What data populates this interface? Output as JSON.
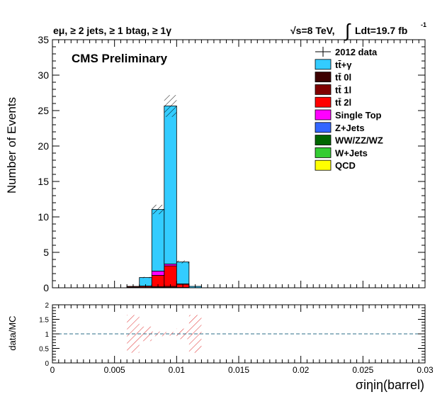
{
  "chart_data": [
    {
      "type": "bar",
      "stacked": true,
      "title_left": "eμ, ≥ 2 jets, ≥ 1 btag, ≥ 1γ",
      "title_right_energy": "√s=8 TeV,",
      "title_right_lumi": "Ldt=19.7 fb",
      "title_right_lumi_exp": "-1",
      "label": "CMS Preliminary",
      "ylabel": "Number of Events",
      "xlim": [
        0,
        0.03
      ],
      "ylim": [
        0,
        35
      ],
      "y_ticks": [
        "0",
        "5",
        "10",
        "15",
        "20",
        "25",
        "30",
        "35"
      ],
      "y_tick_values": [
        0,
        5,
        10,
        15,
        20,
        25,
        30,
        35
      ],
      "bin_width": 0.001,
      "bins_lo": [
        0.006,
        0.007,
        0.008,
        0.009,
        0.01,
        0.011
      ],
      "series": [
        {
          "name": "tt̄ 0l",
          "color": "#3d0000",
          "values": [
            0.05,
            0.0,
            0.05,
            0.05,
            0.0,
            0.0
          ]
        },
        {
          "name": "tt̄ 1l",
          "color": "#800000",
          "values": [
            0.05,
            0.05,
            0.1,
            0.15,
            0.05,
            0.0
          ]
        },
        {
          "name": "tt̄ 2l",
          "color": "#ff0000",
          "values": [
            0.1,
            0.15,
            1.6,
            2.9,
            0.45,
            0.0
          ]
        },
        {
          "name": "Single Top",
          "color": "#ff00ff",
          "values": [
            0.0,
            0.05,
            0.6,
            0.25,
            0.05,
            0.0
          ]
        },
        {
          "name": "Z+Jets",
          "color": "#3366ff",
          "values": [
            0.0,
            0.0,
            0.0,
            0.0,
            0.0,
            0.0
          ]
        },
        {
          "name": "WW/ZZ/WZ",
          "color": "#006600",
          "values": [
            0.0,
            0.0,
            0.0,
            0.0,
            0.0,
            0.0
          ]
        },
        {
          "name": "W+Jets",
          "color": "#33cc33",
          "values": [
            0.0,
            0.0,
            0.0,
            0.0,
            0.0,
            0.0
          ]
        },
        {
          "name": "QCD",
          "color": "#ffff00",
          "values": [
            0.0,
            0.0,
            0.0,
            0.0,
            0.0,
            0.0
          ]
        },
        {
          "name": "tt̄+γ",
          "color": "#33ccff",
          "values": [
            0.0,
            1.2,
            8.7,
            22.3,
            3.1,
            0.2
          ]
        }
      ],
      "uncertainty_band": {
        "fraction": 0.06
      },
      "legend": {
        "placement": "top-right",
        "entries": [
          "2012 data",
          "tt̄+γ",
          "tt̄ 0l",
          "tt̄ 1l",
          "tt̄ 2l",
          "Single Top",
          "Z+Jets",
          "WW/ZZ/WZ",
          "W+Jets",
          "QCD"
        ],
        "data_marker_color": "#000000"
      }
    },
    {
      "type": "line",
      "ylabel": "data/MC",
      "xlabel": "σiηiη(barrel)",
      "xlim": [
        0,
        0.03
      ],
      "ylim": [
        0,
        2
      ],
      "y_ticks": [
        "0",
        "0.5",
        "1",
        "1.5",
        "2"
      ],
      "y_tick_values": [
        0,
        0.5,
        1,
        1.5,
        2
      ],
      "x_ticks": [
        "0",
        "0.005",
        "0.01",
        "0.015",
        "0.02",
        "0.025",
        "0.03"
      ],
      "x_tick_values": [
        0,
        0.005,
        0.01,
        0.015,
        0.02,
        0.025,
        0.03
      ],
      "reference_line": 1,
      "reference_color": "#2c6e8a",
      "band_color": "#e03030",
      "band": [
        {
          "x_lo": 0.006,
          "x_hi": 0.007,
          "lo": 0.35,
          "hi": 1.65
        },
        {
          "x_lo": 0.007,
          "x_hi": 0.008,
          "lo": 0.75,
          "hi": 1.25
        },
        {
          "x_lo": 0.008,
          "x_hi": 0.009,
          "lo": 0.92,
          "hi": 1.08
        },
        {
          "x_lo": 0.009,
          "x_hi": 0.01,
          "lo": 0.94,
          "hi": 1.06
        },
        {
          "x_lo": 0.01,
          "x_hi": 0.011,
          "lo": 0.82,
          "hi": 1.18
        },
        {
          "x_lo": 0.011,
          "x_hi": 0.012,
          "lo": 0.35,
          "hi": 1.65
        }
      ]
    }
  ]
}
